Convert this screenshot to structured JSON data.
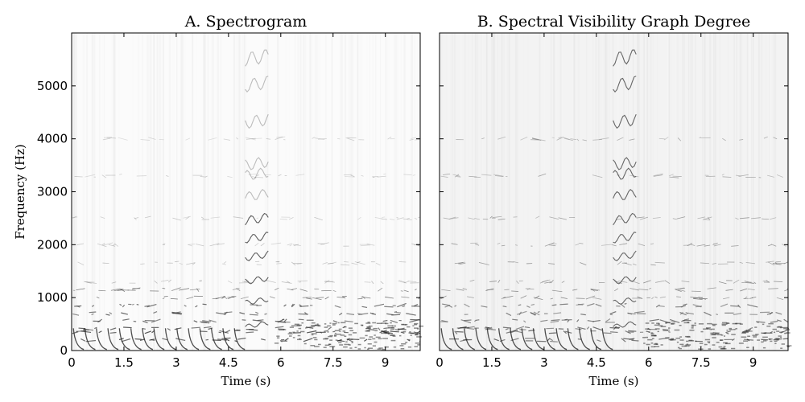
{
  "chart_data": [
    {
      "type": "heatmap",
      "title": "A. Spectrogram",
      "xlabel": "Time (s)",
      "ylabel": "Frequency (Hz)",
      "xlim": [
        0,
        10
      ],
      "ylim": [
        0,
        6000
      ],
      "x_ticks": [
        0,
        1.5,
        3,
        4.5,
        6,
        7.5,
        9
      ],
      "x_tick_labels": [
        "0",
        "1.5",
        "3",
        "4.5",
        "6",
        "7.5",
        "9"
      ],
      "y_ticks": [
        0,
        1000,
        2000,
        3000,
        4000,
        5000
      ],
      "y_tick_labels": [
        "0",
        "1000",
        "2000",
        "3000",
        "4000",
        "5000"
      ],
      "colormap": "grayscale-reversed",
      "grid": false
    },
    {
      "type": "heatmap",
      "title": "B. Spectral Visibility Graph Degree",
      "xlabel": "Time (s)",
      "ylabel": "",
      "xlim": [
        0,
        10
      ],
      "ylim": [
        0,
        6000
      ],
      "x_ticks": [
        0,
        1.5,
        3,
        4.5,
        6,
        7.5,
        9
      ],
      "x_tick_labels": [
        "0",
        "1.5",
        "3",
        "4.5",
        "6",
        "7.5",
        "9"
      ],
      "y_ticks": [
        0,
        1000,
        2000,
        3000,
        4000,
        5000
      ],
      "y_tick_labels": [],
      "colormap": "grayscale-reversed",
      "grid": false
    }
  ]
}
